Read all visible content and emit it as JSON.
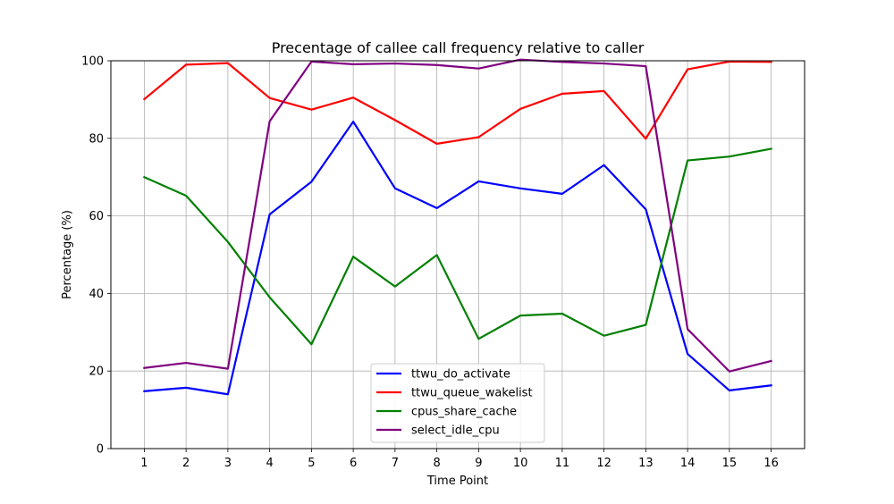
{
  "chart_data": {
    "type": "line",
    "title": "Precentage of callee call frequency relative to caller",
    "xlabel": "Time Point",
    "ylabel": "Percentage (%)",
    "x": [
      1,
      2,
      3,
      4,
      5,
      6,
      7,
      8,
      9,
      10,
      11,
      12,
      13,
      14,
      15,
      16
    ],
    "xlim": [
      0.2,
      16.8
    ],
    "ylim": [
      0,
      100
    ],
    "yticks": [
      0,
      20,
      40,
      60,
      80,
      100
    ],
    "grid": true,
    "legend_position": "lower-center",
    "series": [
      {
        "name": "ttwu_do_activate",
        "color": "#0000ff",
        "values": [
          14.8,
          15.7,
          14.0,
          60.4,
          68.8,
          84.3,
          67.1,
          62.0,
          68.9,
          67.1,
          65.7,
          73.1,
          61.7,
          24.4,
          15.0,
          16.3
        ]
      },
      {
        "name": "ttwu_queue_wakelist",
        "color": "#ff0000",
        "values": [
          90.1,
          99.0,
          99.4,
          90.4,
          87.4,
          90.5,
          84.7,
          78.6,
          80.3,
          87.6,
          91.5,
          92.2,
          79.9,
          97.8,
          99.8,
          99.7
        ]
      },
      {
        "name": "cpus_share_cache",
        "color": "#008000",
        "values": [
          70.0,
          65.2,
          53.3,
          39.0,
          26.9,
          49.5,
          41.8,
          49.9,
          28.3,
          34.3,
          34.8,
          29.1,
          31.9,
          74.3,
          75.3,
          77.3
        ]
      },
      {
        "name": "select_idle_cpu",
        "color": "#800080",
        "values": [
          20.8,
          22.1,
          20.6,
          84.4,
          99.8,
          99.1,
          99.3,
          98.9,
          98.0,
          100.3,
          99.7,
          99.3,
          98.6,
          30.8,
          19.9,
          22.6
        ]
      }
    ]
  }
}
